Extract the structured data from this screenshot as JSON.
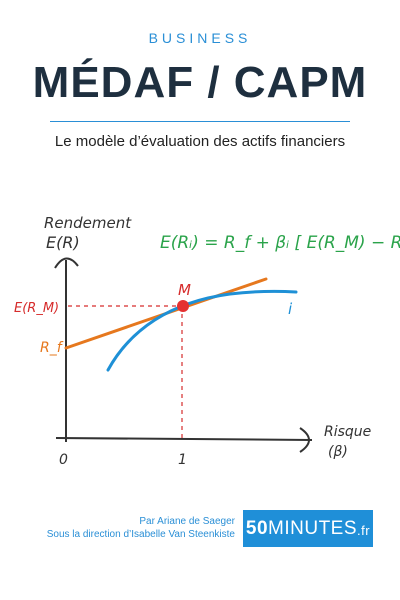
{
  "cover": {
    "series": "BUSINESS",
    "title": "MÉDAF / CAPM",
    "subtitle": "Le modèle d’évaluation des actifs financiers"
  },
  "diagram": {
    "y_label_line1": "Rendement",
    "y_label_line2": "E(R)",
    "x_label_line1": "Risque",
    "x_label_line2": "(β)",
    "formula": "E(Rᵢ) = R_f + βᵢ [ E(R_M) − R_f ]",
    "point_label": "M",
    "curve_label": "i",
    "market_return_label": "E(R_M)",
    "risk_free_label": "R_f",
    "origin_tick": "0",
    "beta_tick": "1",
    "colors": {
      "formula": "#2aa34a",
      "market": "#d62c2c",
      "line": "#e6781e",
      "curve": "#1e90d6",
      "axis": "#333333"
    }
  },
  "footer": {
    "author": "Par Ariane de Saeger",
    "direction": "Sous la direction d’Isabelle Van Steenkiste",
    "brand_number": "50",
    "brand_word": "MINUTES",
    "brand_tld": ".fr"
  }
}
